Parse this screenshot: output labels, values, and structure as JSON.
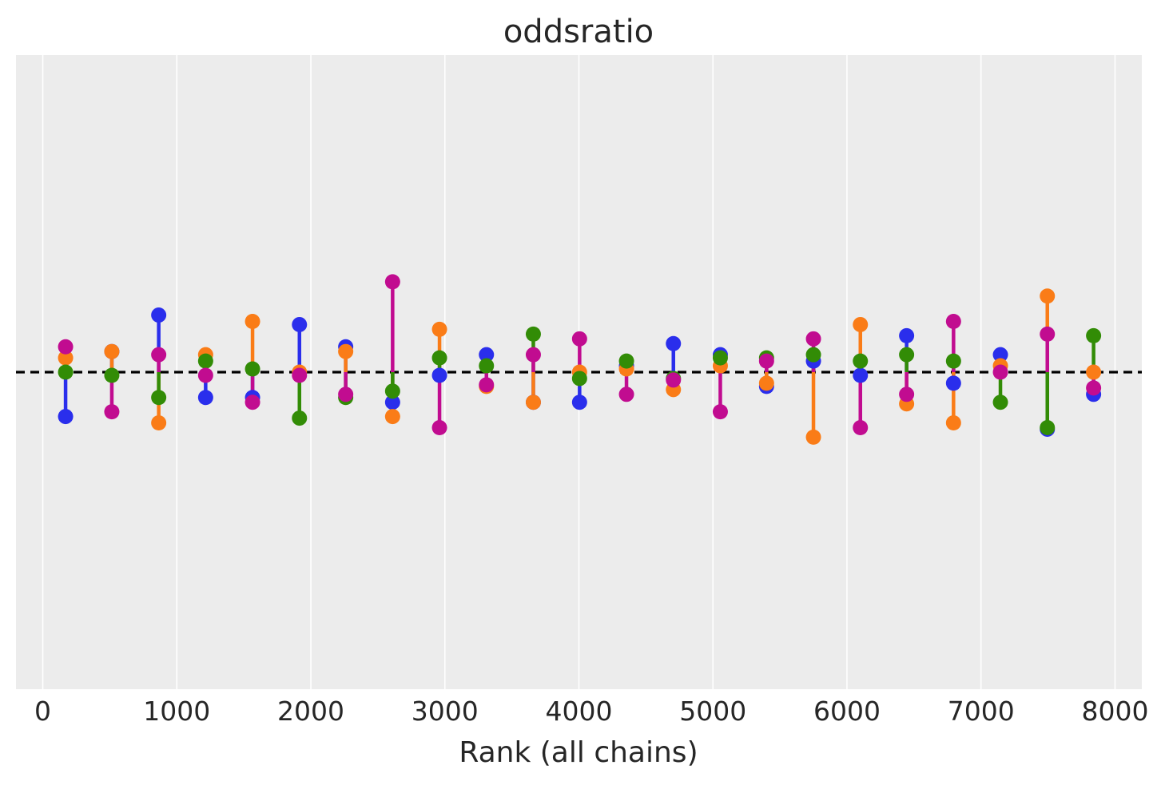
{
  "chart_data": {
    "type": "scatter",
    "title": "oddsratio",
    "xlabel": "Rank (all chains)",
    "ylabel": "",
    "xlim": [
      -200,
      8200
    ],
    "ylim": [
      -1.0,
      1.0
    ],
    "xticks": [
      0,
      1000,
      2000,
      3000,
      4000,
      5000,
      6000,
      7000,
      8000
    ],
    "reference_line": {
      "y": 0,
      "style": "dashed",
      "color": "#000000"
    },
    "grid": "vertical",
    "background": "#ececec",
    "x": [
      170,
      515,
      865,
      1215,
      1565,
      1915,
      2260,
      2610,
      2960,
      3310,
      3660,
      4005,
      4355,
      4705,
      5055,
      5400,
      5750,
      6100,
      6445,
      6795,
      7145,
      7495,
      7840
    ],
    "series": [
      {
        "color": "#2a2eec",
        "values": [
          -0.14,
          0.065,
          0.18,
          -0.08,
          -0.08,
          0.15,
          0.08,
          -0.095,
          -0.01,
          0.055,
          -0.095,
          -0.095,
          0.02,
          0.09,
          0.055,
          -0.045,
          0.035,
          -0.01,
          0.115,
          -0.035,
          0.055,
          -0.18,
          -0.07
        ]
      },
      {
        "color": "#fa7c17",
        "values": [
          0.045,
          0.065,
          -0.16,
          0.055,
          0.16,
          0.0,
          0.065,
          -0.14,
          0.135,
          -0.045,
          -0.095,
          0.0,
          0.01,
          -0.055,
          0.02,
          -0.035,
          -0.205,
          0.15,
          -0.1,
          -0.16,
          0.02,
          0.24,
          0.0
        ]
      },
      {
        "color": "#328c06",
        "values": [
          0.0,
          -0.01,
          -0.08,
          0.035,
          0.01,
          -0.145,
          -0.08,
          -0.06,
          0.045,
          0.02,
          0.12,
          -0.02,
          0.035,
          -0.02,
          0.045,
          0.045,
          0.055,
          0.035,
          0.055,
          0.035,
          -0.095,
          -0.175,
          0.115
        ]
      },
      {
        "color": "#c10c90",
        "values": [
          0.08,
          -0.125,
          0.055,
          -0.01,
          -0.095,
          -0.01,
          -0.07,
          0.285,
          -0.175,
          -0.04,
          0.055,
          0.105,
          -0.07,
          -0.025,
          -0.125,
          0.035,
          0.105,
          -0.175,
          -0.07,
          0.16,
          0.0,
          0.12,
          -0.05
        ]
      }
    ]
  }
}
